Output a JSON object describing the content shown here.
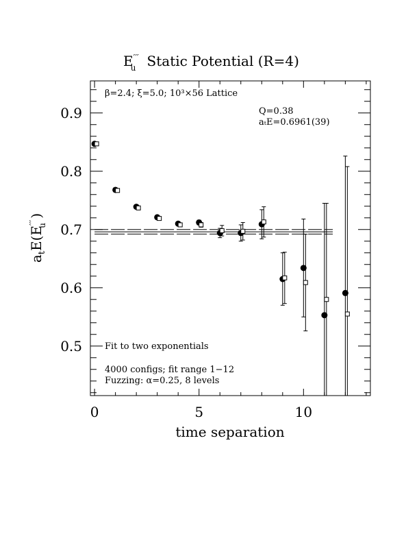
{
  "chart_data": {
    "type": "scatter",
    "title": "E′′′u  Static Potential (R=4)",
    "title_parts": {
      "symbol": "E",
      "superscript": "′′′",
      "subscript": "u",
      "rest": "Static Potential (R=4)"
    },
    "xlabel": "time separation",
    "ylabel": "aₜE(E′′′u )",
    "ylabel_parts": {
      "prefix": "a",
      "sub_t": "t",
      "mid": "E(E",
      "sup": "′′′",
      "sub_u": "u",
      "suffix": " )"
    },
    "xlim": [
      -0.2,
      13.2
    ],
    "ylim": [
      0.415,
      0.955
    ],
    "x_ticks": [
      0,
      5,
      10
    ],
    "x_tick_labels": [
      "0",
      "5",
      "10"
    ],
    "y_ticks": [
      0.5,
      0.6,
      0.7,
      0.8,
      0.9
    ],
    "y_tick_labels": [
      "0.5",
      "0.6",
      "0.7",
      "0.8",
      "0.9"
    ],
    "grid": false,
    "annotations": {
      "lattice": "β=2.4; ξ=5.0; 10³×56 Lattice",
      "q": "Q=0.38",
      "energy": "aₜE=0.6961(39)",
      "fit_method": "Fit to two exponentials",
      "configs": "4000 configs; fit range 1−12",
      "fuzzing": "Fuzzing: α=0.25, 8 levels"
    },
    "fit": {
      "value": 0.6961,
      "error": 0.0039,
      "x_range": [
        0,
        11.4
      ]
    },
    "series": [
      {
        "marker": "filled-circle",
        "points": [
          {
            "x": 0,
            "y": 0.847,
            "err": 0.002
          },
          {
            "x": 1,
            "y": 0.768,
            "err": 0.002
          },
          {
            "x": 2,
            "y": 0.739,
            "err": 0.003
          },
          {
            "x": 3,
            "y": 0.721,
            "err": 0.003
          },
          {
            "x": 4,
            "y": 0.71,
            "err": 0.003
          },
          {
            "x": 5,
            "y": 0.712,
            "err": 0.004
          },
          {
            "x": 6,
            "y": 0.694,
            "err": 0.008
          },
          {
            "x": 7,
            "y": 0.694,
            "err": 0.014
          },
          {
            "x": 8,
            "y": 0.709,
            "err": 0.025
          },
          {
            "x": 9,
            "y": 0.615,
            "err": 0.045
          },
          {
            "x": 10,
            "y": 0.634,
            "err": 0.084
          },
          {
            "x": 11,
            "y": 0.553,
            "err": 0.192
          },
          {
            "x": 12,
            "y": 0.591,
            "err": 0.235
          }
        ]
      },
      {
        "marker": "open-square",
        "points": [
          {
            "x": 0,
            "y": 0.847,
            "err": 0.002
          },
          {
            "x": 1,
            "y": 0.767,
            "err": 0.002
          },
          {
            "x": 2,
            "y": 0.737,
            "err": 0.003
          },
          {
            "x": 3,
            "y": 0.719,
            "err": 0.003
          },
          {
            "x": 4,
            "y": 0.708,
            "err": 0.003
          },
          {
            "x": 5,
            "y": 0.708,
            "err": 0.004
          },
          {
            "x": 6,
            "y": 0.698,
            "err": 0.009
          },
          {
            "x": 7,
            "y": 0.697,
            "err": 0.015
          },
          {
            "x": 8,
            "y": 0.713,
            "err": 0.026
          },
          {
            "x": 9,
            "y": 0.617,
            "err": 0.044
          },
          {
            "x": 10,
            "y": 0.609,
            "err": 0.083
          },
          {
            "x": 11,
            "y": 0.58,
            "err": 0.165
          },
          {
            "x": 12,
            "y": 0.555,
            "err": 0.253
          }
        ]
      }
    ]
  }
}
